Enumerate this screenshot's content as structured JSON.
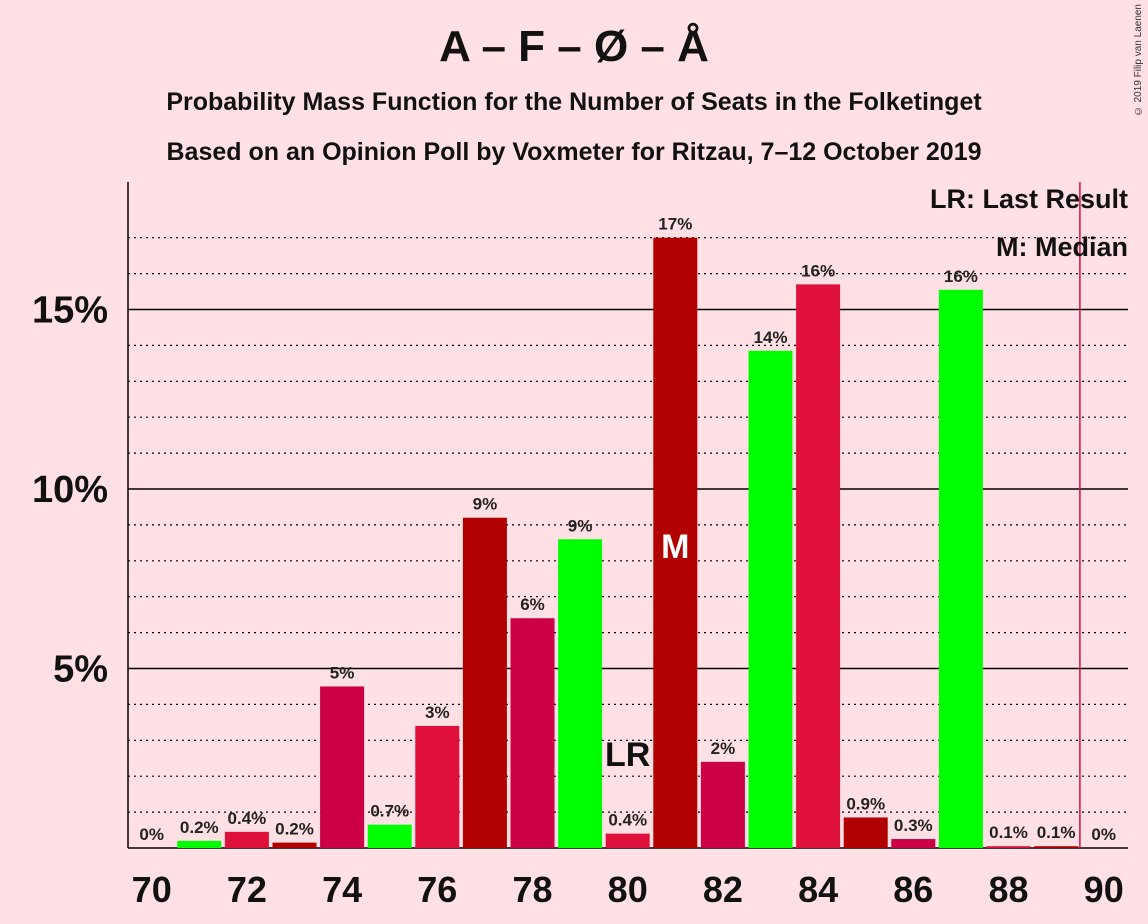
{
  "chart_data": {
    "type": "bar",
    "title": "A – F – Ø – Å",
    "subtitle": "Probability Mass Function for the Number of Seats in the Folketinget",
    "subtitle2": "Based on an Opinion Poll by Voxmeter for Ritzau, 7–12 October 2019",
    "copyright": "© 2019 Filip van Laenen",
    "legend": [
      "LR: Last Result",
      "M: Median"
    ],
    "xlabel": "",
    "ylabel": "",
    "x": [
      70,
      71,
      72,
      73,
      74,
      75,
      76,
      77,
      78,
      79,
      80,
      81,
      82,
      83,
      84,
      85,
      86,
      87,
      88,
      89,
      90
    ],
    "values": [
      0,
      0.2,
      0.45,
      0.15,
      4.5,
      0.65,
      3.4,
      9.2,
      6.4,
      8.6,
      0.4,
      17.0,
      2.4,
      13.85,
      15.7,
      0.85,
      0.25,
      15.55,
      0.05,
      0.05,
      0
    ],
    "labels": [
      "0%",
      "0.2%",
      "0.4%",
      "0.2%",
      "5%",
      "0.7%",
      "3%",
      "9%",
      "6%",
      "9%",
      "0.4%",
      "17%",
      "2%",
      "14%",
      "16%",
      "0.9%",
      "0.3%",
      "16%",
      "0.1%",
      "0.1%",
      "0%"
    ],
    "colors": [
      "#00ff00",
      "#00ff00",
      "#e0103c",
      "#b00000",
      "#cc0044",
      "#00ff00",
      "#e0103c",
      "#b00000",
      "#cc0044",
      "#00ff00",
      "#e0103c",
      "#b00000",
      "#cc0044",
      "#00ff00",
      "#e0103c",
      "#b00000",
      "#cc0044",
      "#00ff00",
      "#e0103c",
      "#b00000",
      "#cc0044"
    ],
    "xticks": [
      70,
      72,
      74,
      76,
      78,
      80,
      82,
      84,
      86,
      88,
      90
    ],
    "yticks": [
      5,
      10,
      15
    ],
    "ytick_labels": [
      "5%",
      "10%",
      "15%"
    ],
    "ylim": [
      0,
      18.5
    ],
    "xlim": [
      69.5,
      90.5
    ],
    "median": 81,
    "median_label": "M",
    "last_result": 80,
    "last_result_label": "LR",
    "majority_line": 89.5,
    "grid": "dotted minor every 1%, solid major every 5%"
  }
}
